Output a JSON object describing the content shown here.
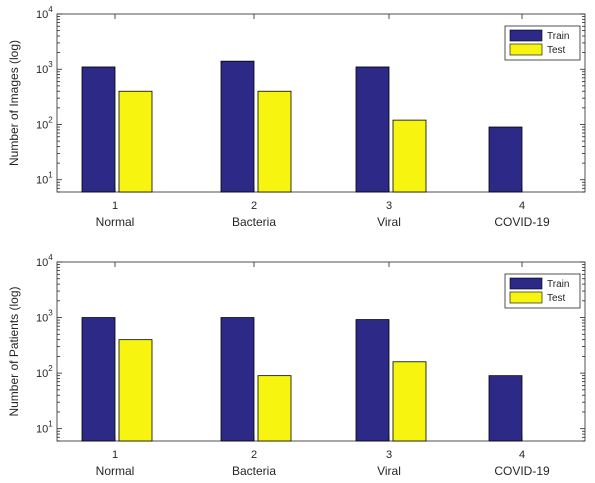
{
  "colors": {
    "train": "#2d2a87",
    "test": "#f7f50f"
  },
  "chart_data": [
    {
      "type": "bar",
      "yscale": "log",
      "ylabel": "Number of Images (log)",
      "ylim": [
        6,
        10000
      ],
      "ytick_labels": [
        "10",
        "10",
        "10",
        "10"
      ],
      "ytick_exponents": [
        "1",
        "2",
        "3",
        "4"
      ],
      "ytick_values": [
        10,
        100,
        1000,
        10000
      ],
      "categories": [
        "1",
        "2",
        "3",
        "4"
      ],
      "category_names": [
        "Normal",
        "Bacteria",
        "Viral",
        "COVID-19"
      ],
      "series": [
        {
          "name": "Train",
          "values": [
            1100,
            1400,
            1100,
            90
          ]
        },
        {
          "name": "Test",
          "values": [
            400,
            400,
            120,
            null
          ]
        }
      ],
      "legend": "top-right",
      "grid": false
    },
    {
      "type": "bar",
      "yscale": "log",
      "ylabel": "Number of Patients (log)",
      "ylim": [
        6,
        10000
      ],
      "ytick_labels": [
        "10",
        "10",
        "10",
        "10"
      ],
      "ytick_exponents": [
        "1",
        "2",
        "3",
        "4"
      ],
      "ytick_values": [
        10,
        100,
        1000,
        10000
      ],
      "categories": [
        "1",
        "2",
        "3",
        "4"
      ],
      "category_names": [
        "Normal",
        "Bacteria",
        "Viral",
        "COVID-19"
      ],
      "series": [
        {
          "name": "Train",
          "values": [
            1000,
            1000,
            920,
            90
          ]
        },
        {
          "name": "Test",
          "values": [
            400,
            90,
            160,
            null
          ]
        }
      ],
      "legend": "top-right",
      "grid": false
    }
  ]
}
